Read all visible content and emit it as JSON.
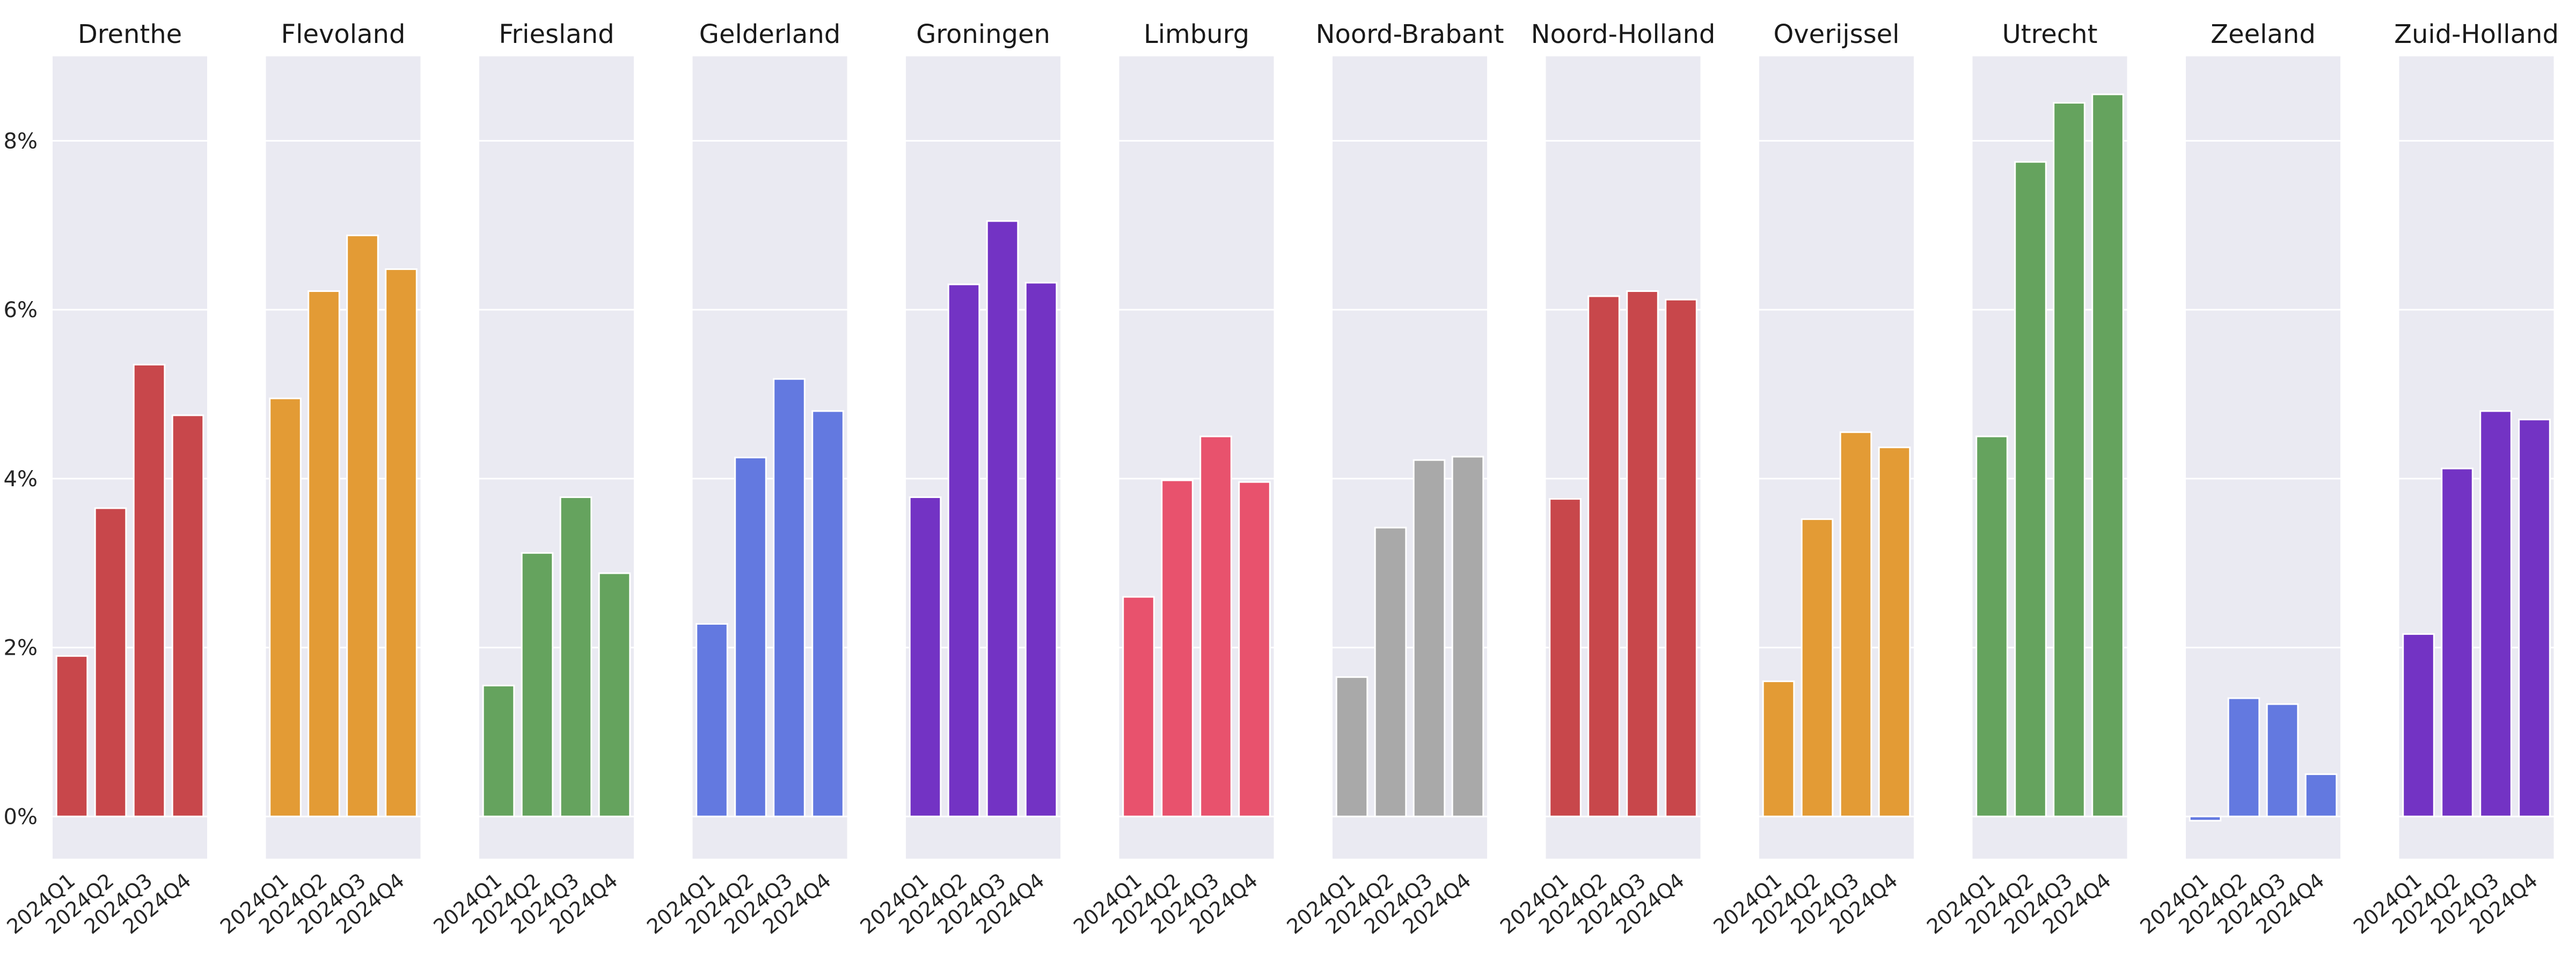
{
  "chart_data": {
    "type": "bar",
    "layout": "small-multiples",
    "categories": [
      "2024Q1",
      "2024Q2",
      "2024Q3",
      "2024Q4"
    ],
    "ylim": [
      -0.5,
      9.0
    ],
    "yticks": [
      0,
      2,
      4,
      6,
      8
    ],
    "ytick_labels": [
      "0%",
      "2%",
      "4%",
      "6%",
      "8%"
    ],
    "grid": true,
    "sharey": true,
    "panels": [
      {
        "title": "Drenthe",
        "color": "#c8474b",
        "values": [
          1.9,
          3.65,
          5.35,
          4.75
        ]
      },
      {
        "title": "Flevoland",
        "color": "#e39b35",
        "values": [
          4.95,
          6.22,
          6.88,
          6.48
        ]
      },
      {
        "title": "Friesland",
        "color": "#65a35e",
        "values": [
          1.55,
          3.12,
          3.78,
          2.88
        ]
      },
      {
        "title": "Gelderland",
        "color": "#6379e0",
        "values": [
          2.28,
          4.25,
          5.18,
          4.8
        ]
      },
      {
        "title": "Groningen",
        "color": "#7333c4",
        "values": [
          3.78,
          6.3,
          7.05,
          6.32
        ]
      },
      {
        "title": "Limburg",
        "color": "#e8526d",
        "values": [
          2.6,
          3.98,
          4.5,
          3.96
        ]
      },
      {
        "title": "Noord-Brabant",
        "color": "#a9a9a9",
        "values": [
          1.65,
          3.42,
          4.22,
          4.26
        ]
      },
      {
        "title": "Noord-Holland",
        "color": "#c8474b",
        "values": [
          3.76,
          6.16,
          6.22,
          6.12
        ]
      },
      {
        "title": "Overijssel",
        "color": "#e39b35",
        "values": [
          1.6,
          3.52,
          4.55,
          4.37
        ]
      },
      {
        "title": "Utrecht",
        "color": "#65a35e",
        "values": [
          4.5,
          7.75,
          8.45,
          8.55
        ]
      },
      {
        "title": "Zeeland",
        "color": "#6379e0",
        "values": [
          -0.05,
          1.4,
          1.33,
          0.5
        ]
      },
      {
        "title": "Zuid-Holland",
        "color": "#7333c4",
        "values": [
          2.16,
          4.12,
          4.8,
          4.7
        ]
      }
    ]
  }
}
